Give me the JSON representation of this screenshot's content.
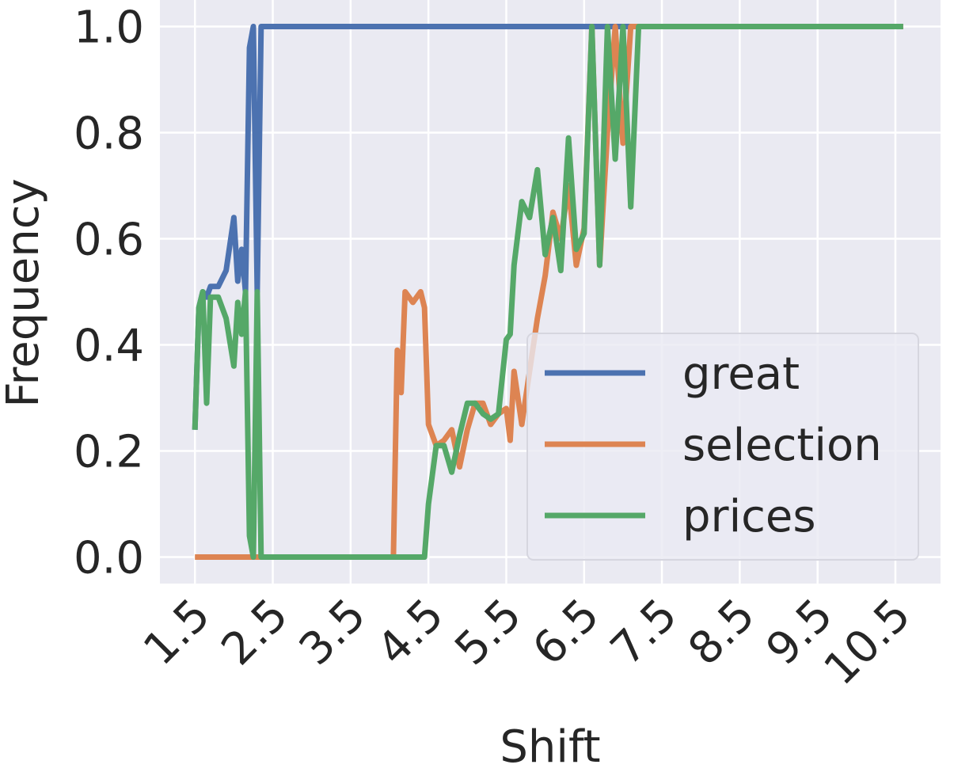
{
  "chart_data": {
    "type": "line",
    "xlabel": "Shift",
    "ylabel": "Frequency",
    "x": [
      1.5,
      1.55,
      1.6,
      1.65,
      1.7,
      1.8,
      1.9,
      2.0,
      2.05,
      2.1,
      2.15,
      2.2,
      2.25,
      2.3,
      2.35,
      2.4,
      4.0,
      4.05,
      4.1,
      4.15,
      4.2,
      4.3,
      4.4,
      4.45,
      4.5,
      4.6,
      4.7,
      4.8,
      4.9,
      5.0,
      5.1,
      5.2,
      5.3,
      5.4,
      5.5,
      5.55,
      5.6,
      5.7,
      5.8,
      5.9,
      6.0,
      6.1,
      6.2,
      6.3,
      6.4,
      6.5,
      6.6,
      6.7,
      6.8,
      6.9,
      7.0,
      7.1,
      7.2,
      10.6
    ],
    "series": [
      {
        "name": "great",
        "color": "#4c72b0",
        "values": [
          0.24,
          0.47,
          0.5,
          0.49,
          0.51,
          0.51,
          0.54,
          0.64,
          0.52,
          0.58,
          0.5,
          0.96,
          1.0,
          0.5,
          1.0,
          1.0,
          1.0,
          1.0,
          1.0,
          1.0,
          1.0,
          1.0,
          1.0,
          1.0,
          1.0,
          1.0,
          1.0,
          1.0,
          1.0,
          1.0,
          1.0,
          1.0,
          1.0,
          1.0,
          1.0,
          1.0,
          1.0,
          1.0,
          1.0,
          1.0,
          1.0,
          1.0,
          1.0,
          1.0,
          1.0,
          1.0,
          1.0,
          1.0,
          1.0,
          1.0,
          1.0,
          1.0,
          1.0,
          1.0
        ]
      },
      {
        "name": "selection",
        "color": "#dd8452",
        "values": [
          0,
          0,
          0,
          0,
          0,
          0,
          0,
          0,
          0,
          0,
          0,
          0,
          0,
          0,
          0,
          0,
          0,
          0,
          0.39,
          0.31,
          0.5,
          0.48,
          0.5,
          0.47,
          0.25,
          0.21,
          0.22,
          0.24,
          0.17,
          0.24,
          0.29,
          0.29,
          0.25,
          0.27,
          0.28,
          0.22,
          0.35,
          0.25,
          0.35,
          0.45,
          0.53,
          0.65,
          0.6,
          0.7,
          0.55,
          0.62,
          1.0,
          0.55,
          0.8,
          1.0,
          0.78,
          1.0,
          1.0,
          1.0
        ]
      },
      {
        "name": "prices",
        "color": "#55a868",
        "values": [
          0.24,
          0.47,
          0.5,
          0.29,
          0.49,
          0.49,
          0.45,
          0.36,
          0.48,
          0.42,
          0.5,
          0.04,
          0,
          0.5,
          0,
          0,
          0,
          0,
          0,
          0,
          0,
          0,
          0,
          0,
          0.1,
          0.21,
          0.21,
          0.16,
          0.23,
          0.29,
          0.29,
          0.27,
          0.26,
          0.27,
          0.41,
          0.42,
          0.55,
          0.67,
          0.64,
          0.73,
          0.57,
          0.64,
          0.54,
          0.79,
          0.58,
          0.61,
          1.0,
          0.55,
          1.0,
          0.75,
          1.0,
          0.66,
          1.0,
          1.0
        ]
      }
    ],
    "xlim": [
      1.05,
      11.08
    ],
    "ylim": [
      -0.05,
      1.05
    ],
    "xticks": [
      1.5,
      2.5,
      3.5,
      4.5,
      5.5,
      6.5,
      7.5,
      8.5,
      9.5,
      10.5
    ],
    "yticks": [
      {
        "value": 0,
        "label": "0.0"
      },
      {
        "value": 0.2,
        "label": "0.2"
      },
      {
        "value": 0.4,
        "label": "0.4"
      },
      {
        "value": 0.6,
        "label": "0.6"
      },
      {
        "value": 0.8,
        "label": "0.8"
      },
      {
        "value": 1,
        "label": "1.0"
      }
    ],
    "grid": true,
    "legend": "lower right"
  }
}
